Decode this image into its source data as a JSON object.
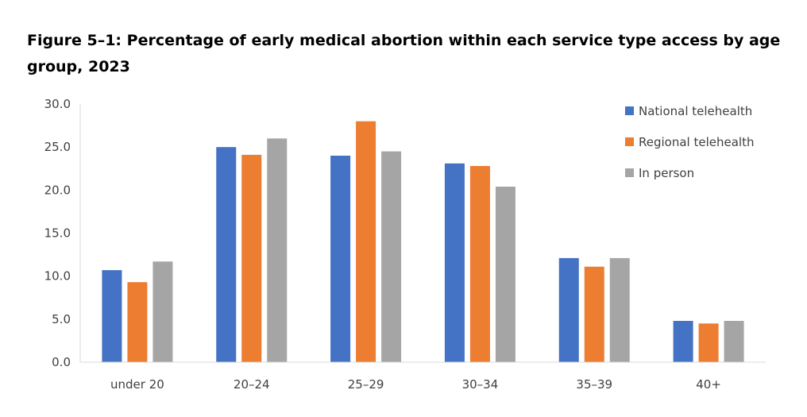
{
  "chart_data": {
    "type": "bar",
    "title": "Figure 5–1: Percentage of early medical abortion within each service type access by age group, 2023",
    "xlabel": "",
    "ylabel": "",
    "ylim": [
      0,
      30
    ],
    "yticks": [
      "0.0",
      "5.0",
      "10.0",
      "15.0",
      "20.0",
      "25.0",
      "30.0"
    ],
    "grid": false,
    "legend_position": "top-right",
    "categories": [
      "under 20",
      "20–24",
      "25–29",
      "30–34",
      "35–39",
      "40+"
    ],
    "series": [
      {
        "name": "National telehealth",
        "color": "#4472C4",
        "values": [
          10.7,
          25.0,
          24.0,
          23.1,
          12.1,
          4.8
        ]
      },
      {
        "name": "Regional telehealth",
        "color": "#ED7D31",
        "values": [
          9.3,
          24.1,
          28.0,
          22.8,
          11.1,
          4.5
        ]
      },
      {
        "name": "In person",
        "color": "#A5A5A5",
        "values": [
          11.7,
          26.0,
          24.5,
          20.4,
          12.1,
          4.8
        ]
      }
    ]
  }
}
